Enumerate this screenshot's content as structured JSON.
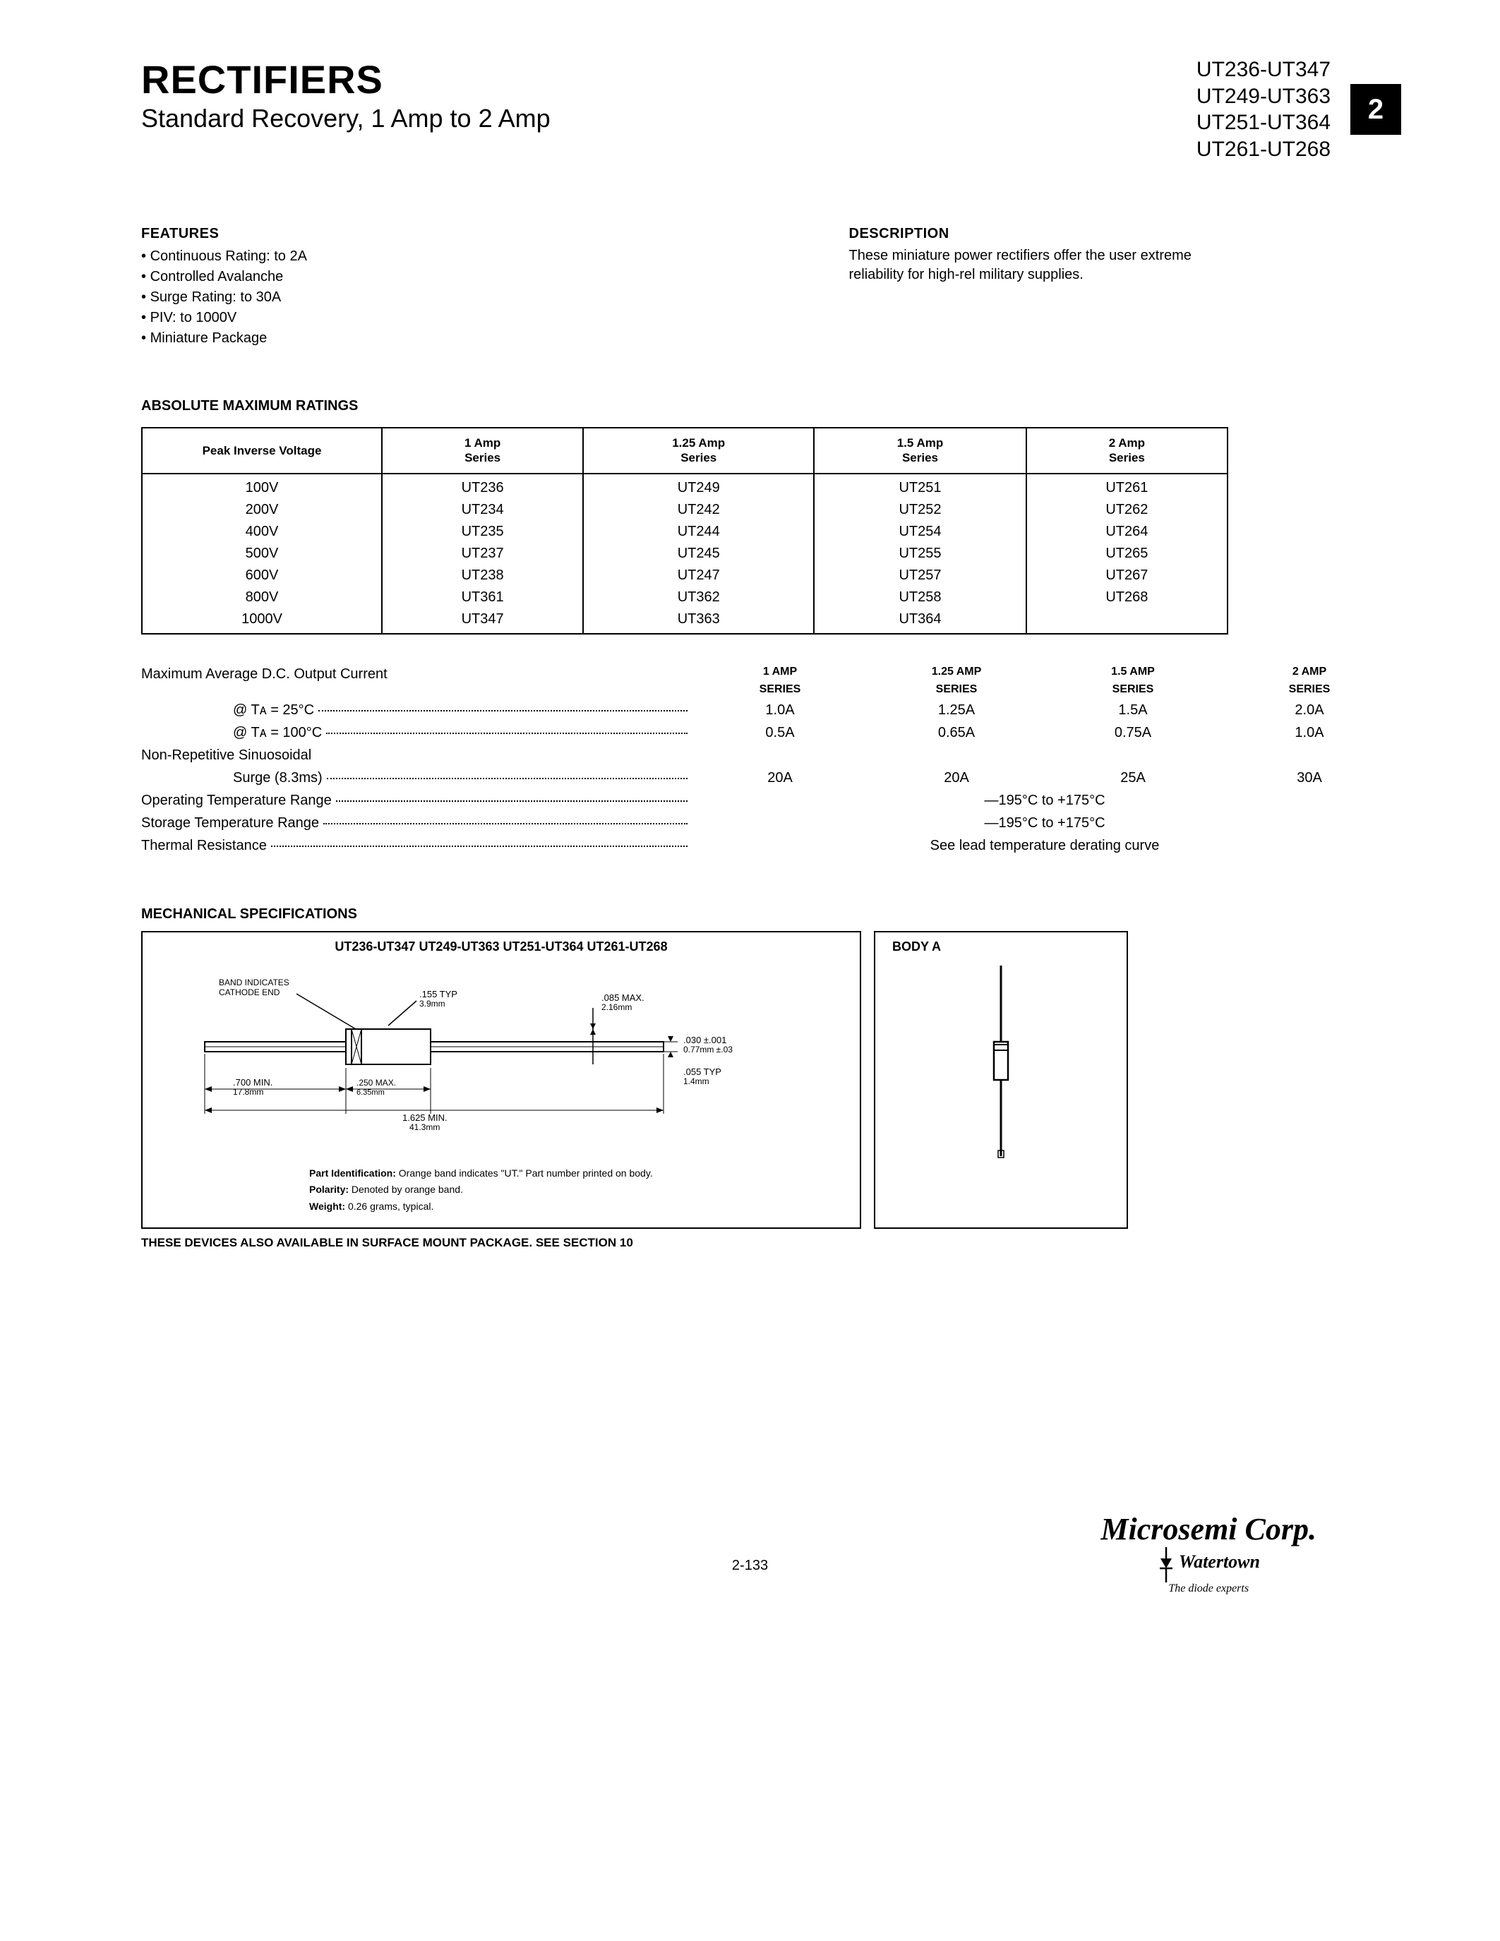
{
  "header": {
    "title": "RECTIFIERS",
    "subtitle": "Standard Recovery, 1 Amp to 2 Amp",
    "parts": [
      "UT236-UT347",
      "UT249-UT363",
      "UT251-UT364",
      "UT261-UT268"
    ],
    "badge": "2"
  },
  "features": {
    "heading": "FEATURES",
    "items": [
      "Continuous Rating: to 2A",
      "Controlled Avalanche",
      "Surge Rating: to 30A",
      "PIV: to 1000V",
      "Miniature Package"
    ]
  },
  "description": {
    "heading": "DESCRIPTION",
    "text": "These miniature power rectifiers offer the user extreme reliability for high-rel military supplies."
  },
  "ratings": {
    "heading": "ABSOLUTE MAXIMUM RATINGS",
    "columns": [
      "Peak Inverse Voltage",
      "1 Amp\nSeries",
      "1.25 Amp\nSeries",
      "1.5 Amp\nSeries",
      "2 Amp\nSeries"
    ],
    "rows": [
      [
        "100V",
        "UT236",
        "UT249",
        "UT251",
        "UT261"
      ],
      [
        "200V",
        "UT234",
        "UT242",
        "UT252",
        "UT262"
      ],
      [
        "400V",
        "UT235",
        "UT244",
        "UT254",
        "UT264"
      ],
      [
        "500V",
        "UT237",
        "UT245",
        "UT255",
        "UT265"
      ],
      [
        "600V",
        "UT238",
        "UT247",
        "UT257",
        "UT267"
      ],
      [
        "800V",
        "UT361",
        "UT362",
        "UT258",
        "UT268"
      ],
      [
        "1000V",
        "UT347",
        "UT363",
        "UT364",
        ""
      ]
    ]
  },
  "specs": {
    "series_headers": [
      "1 AMP\nSERIES",
      "1.25 AMP\nSERIES",
      "1.5 AMP\nSERIES",
      "2 AMP\nSERIES"
    ],
    "max_avg_label": "Maximum Average D.C. Output Current",
    "ta25_label": "@ Tᴀ = 25°C",
    "ta25_vals": [
      "1.0A",
      "1.25A",
      "1.5A",
      "2.0A"
    ],
    "ta100_label": "@ Tᴀ = 100°C",
    "ta100_vals": [
      "0.5A",
      "0.65A",
      "0.75A",
      "1.0A"
    ],
    "nonrep_label": "Non-Repetitive Sinuosoidal",
    "surge_label": "Surge (8.3ms)",
    "surge_vals": [
      "20A",
      "20A",
      "25A",
      "30A"
    ],
    "op_temp_label": "Operating Temperature Range",
    "op_temp_val": "—195°C to +175°C",
    "storage_label": "Storage Temperature Range",
    "storage_val": "—195°C to +175°C",
    "thermal_label": "Thermal Resistance",
    "thermal_val": "See lead temperature derating curve"
  },
  "mechanical": {
    "heading": "MECHANICAL SPECIFICATIONS",
    "left_title": "UT236-UT347   UT249-UT363   UT251-UT364   UT261-UT268",
    "right_title": "BODY A",
    "band_label": "BAND INDICATES\nCATHODE END",
    "dim_155": ".155 TYP\n3.9mm",
    "dim_085": ".085 MAX.\n2.16mm",
    "dim_030": ".030 ±.001\n0.77mm ±.03",
    "dim_055": ".055 TYP\n1.4mm",
    "dim_700": ".700 MIN.\n17.8mm",
    "dim_250": ".250 MAX.\n6.35mm",
    "dim_1625": "1.625 MIN.\n41.3mm",
    "notes": {
      "part_id": "Part Identification: Orange band indicates \"UT.\" Part number printed on body.",
      "polarity": "Polarity: Denoted by orange band.",
      "weight": "Weight: 0.26 grams, typical."
    },
    "surface_note": "THESE DEVICES ALSO AVAILABLE IN SURFACE MOUNT PACKAGE. SEE SECTION 10"
  },
  "footer": {
    "page": "2-133",
    "logo_main": "Microsemi Corp.",
    "logo_sub": "Watertown",
    "logo_tag": "The diode experts"
  }
}
